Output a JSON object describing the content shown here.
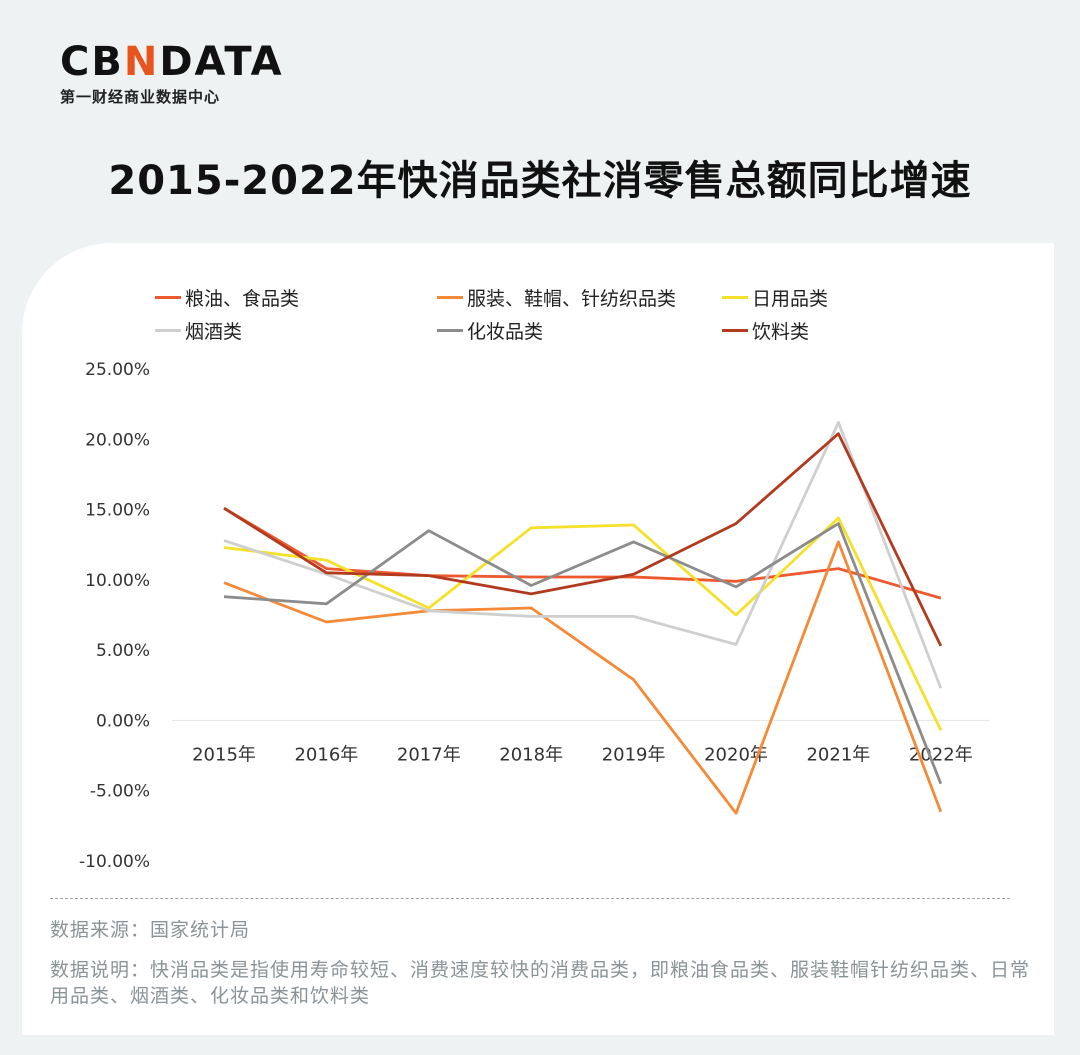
{
  "logo": {
    "part1": "CB",
    "part2": "N",
    "part3": "DATA",
    "subtitle": "第一财经商业数据中心"
  },
  "page_title": "2015-2022年快消品类社消零售总额同比增速",
  "footer": {
    "source": "数据来源：国家统计局",
    "note": "数据说明：快消品类是指使用寿命较短、消费速度较快的消费品类，即粮油食品类、服装鞋帽针纺织品类、日常用品类、烟酒类、化妆品类和饮料类"
  },
  "colors": {
    "background": "#eef2f3",
    "card": "#ffffff",
    "accent": "#e8541e"
  },
  "chart_data": {
    "type": "line",
    "title": "",
    "xlabel": "",
    "ylabel": "",
    "categories": [
      "2015年",
      "2016年",
      "2017年",
      "2018年",
      "2019年",
      "2020年",
      "2021年",
      "2022年"
    ],
    "y_ticks": [
      "25.00%",
      "20.00%",
      "15.00%",
      "10.00%",
      "5.00%",
      "0.00%",
      "-5.00%",
      "-10.00%"
    ],
    "ylim": [
      -10,
      25
    ],
    "y_unit": "%",
    "grid": false,
    "legend_position": "top",
    "series": [
      {
        "name": "粮油、食品类",
        "color": "#ee5a2f",
        "values": [
          15.1,
          10.8,
          10.3,
          10.2,
          10.2,
          9.9,
          10.8,
          8.7
        ]
      },
      {
        "name": "服装、鞋帽、针纺织品类",
        "color": "#f48a37",
        "values": [
          9.8,
          7.0,
          7.8,
          8.0,
          2.9,
          -6.6,
          12.7,
          -6.5
        ]
      },
      {
        "name": "日用品类",
        "color": "#f5e12a",
        "values": [
          12.3,
          11.4,
          8.0,
          13.7,
          13.9,
          7.5,
          14.4,
          -0.7
        ]
      },
      {
        "name": "烟酒类",
        "color": "#cfcfcf",
        "values": [
          12.8,
          10.4,
          7.8,
          7.4,
          7.4,
          5.4,
          21.2,
          2.3
        ]
      },
      {
        "name": "化妆品类",
        "color": "#8c8c8c",
        "values": [
          8.8,
          8.3,
          13.5,
          9.6,
          12.7,
          9.5,
          14.0,
          -4.5
        ]
      },
      {
        "name": "饮料类",
        "color": "#b23a1e",
        "values": [
          15.1,
          10.5,
          10.3,
          9.0,
          10.4,
          14.0,
          20.4,
          5.3
        ]
      }
    ]
  }
}
